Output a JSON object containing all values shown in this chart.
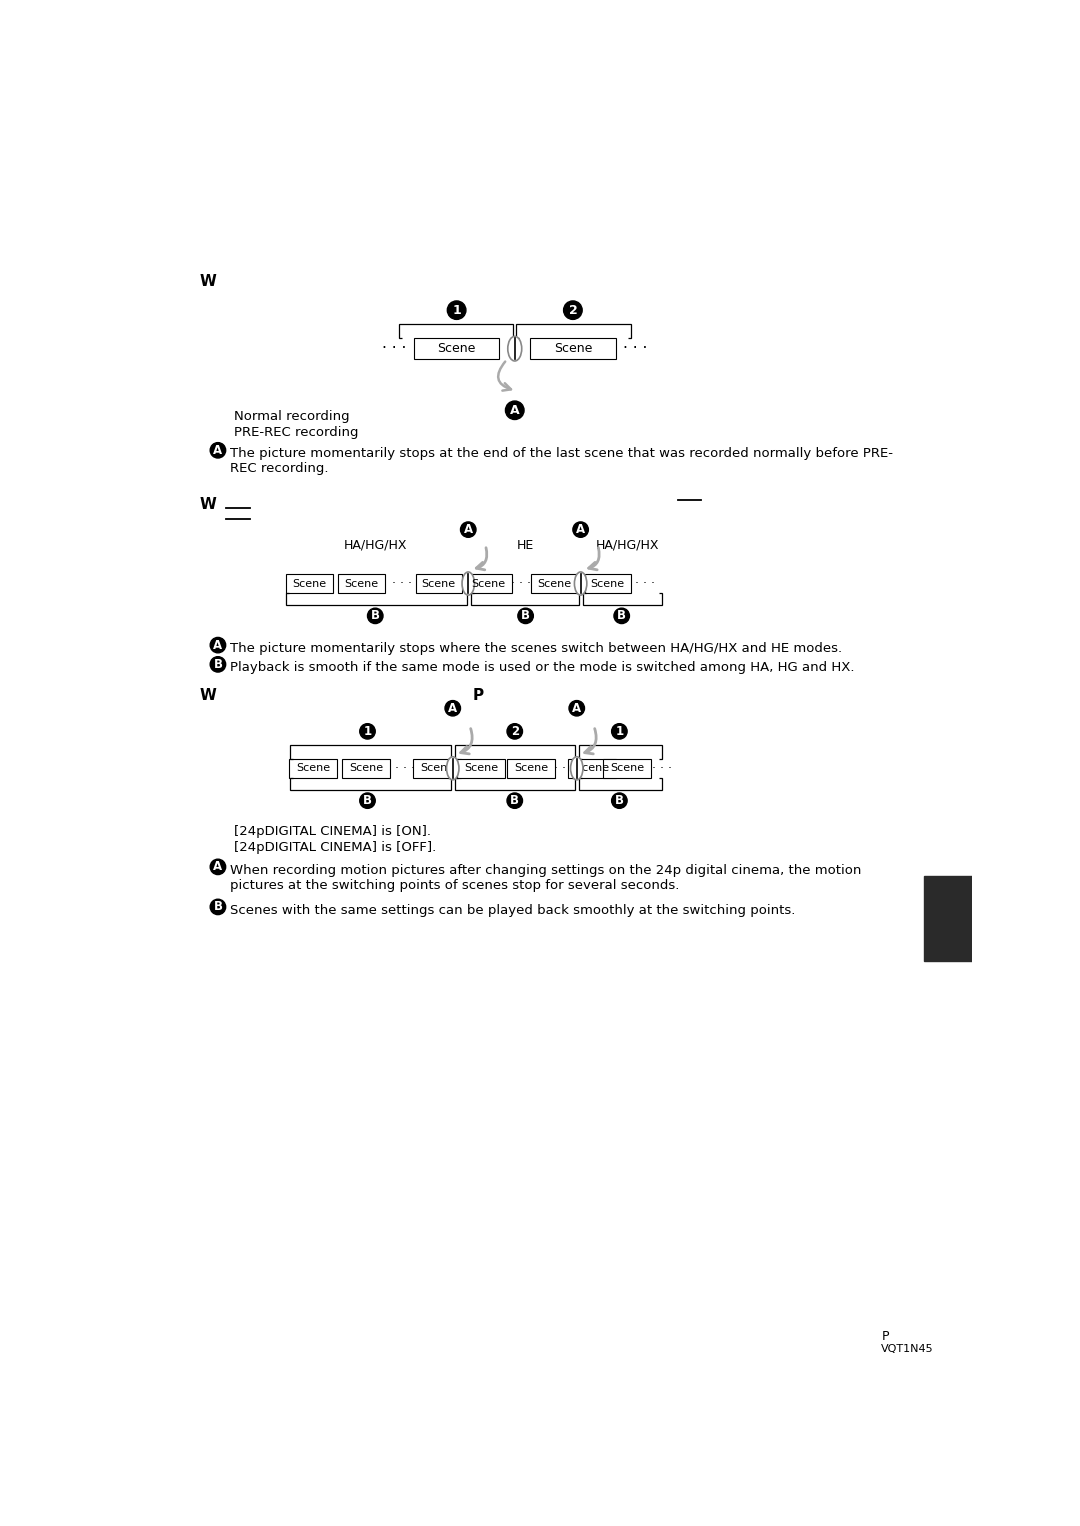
{
  "bg_color": "#ffffff",
  "section1": {
    "note_A": "The picture momentarily stops at the end of the last scene that was recorded normally before PRE-\nREC recording."
  },
  "section2": {
    "group1_label": "HA/HG/HX",
    "group2_label": "HE",
    "group3_label": "HA/HG/HX",
    "note_A": "The picture momentarily stops where the scenes switch between HA/HG/HX and HE modes.",
    "note_B": "Playback is smooth if the same mode is used or the mode is switched among HA, HG and HX."
  },
  "section3": {
    "legend_on": "[24pDIGITAL CINEMA] is [ON].",
    "legend_off": "[24pDIGITAL CINEMA] is [OFF].",
    "note_A": "When recording motion pictures after changing settings on the 24p digital cinema, the motion\npictures at the switching points of scenes stop for several seconds.",
    "note_B": "Scenes with the same settings can be played back smoothly at the switching points."
  },
  "footer_p": "P",
  "footer_code": "VQT1N45"
}
